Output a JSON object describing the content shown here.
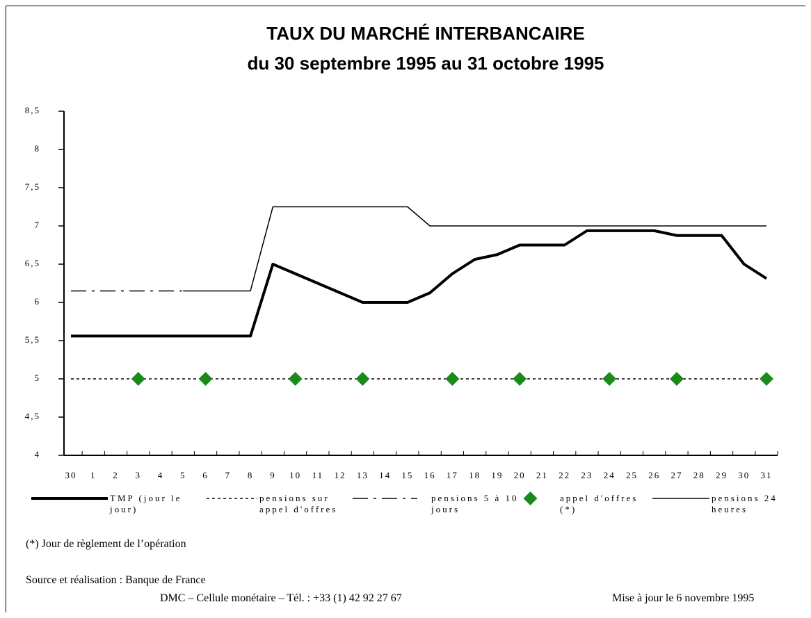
{
  "chart_data": {
    "type": "line",
    "title": "TAUX DU MARCHÉ INTERBANCAIRE",
    "subtitle": "du 30 septembre 1995 au 31 octobre 1995",
    "categories": [
      "30",
      "1",
      "2",
      "3",
      "4",
      "5",
      "6",
      "7",
      "8",
      "9",
      "10",
      "11",
      "12",
      "13",
      "14",
      "15",
      "16",
      "17",
      "18",
      "19",
      "20",
      "21",
      "22",
      "23",
      "24",
      "25",
      "26",
      "27",
      "28",
      "29",
      "30",
      "31"
    ],
    "ylim": [
      4,
      8.5
    ],
    "yticks": [
      {
        "value": 4,
        "label": "4"
      },
      {
        "value": 4.5,
        "label": "4,5"
      },
      {
        "value": 5,
        "label": "5"
      },
      {
        "value": 5.5,
        "label": "5,5"
      },
      {
        "value": 6,
        "label": "6"
      },
      {
        "value": 6.5,
        "label": "6,5"
      },
      {
        "value": 7,
        "label": "7"
      },
      {
        "value": 7.5,
        "label": "7,5"
      },
      {
        "value": 8,
        "label": "8"
      },
      {
        "value": 8.5,
        "label": "8,5"
      }
    ],
    "series": [
      {
        "name": "TMP (jour le jour)",
        "color": "#000000",
        "style": "solid",
        "width": 4,
        "values": [
          5.56,
          5.56,
          5.56,
          5.56,
          5.56,
          5.56,
          5.56,
          5.56,
          5.56,
          6.5,
          6.375,
          6.25,
          6.125,
          6.0,
          6.0,
          6.0,
          6.125,
          6.375,
          6.5625,
          6.625,
          6.75,
          6.75,
          6.75,
          6.9375,
          6.9375,
          6.9375,
          6.9375,
          6.875,
          6.875,
          6.875,
          6.5,
          6.3125
        ]
      },
      {
        "name": "pensions sur appel d'offres",
        "color": "#000000",
        "style": "dotted",
        "width": 1.5,
        "values": [
          5,
          5,
          5,
          5,
          5,
          5,
          5,
          5,
          5,
          5,
          5,
          5,
          5,
          5,
          5,
          5,
          5,
          5,
          5,
          5,
          5,
          5,
          5,
          5,
          5,
          5,
          5,
          5,
          5,
          5,
          5,
          5
        ]
      },
      {
        "name": "pensions 5 à 10 jours",
        "color": "#000000",
        "style": "dashdot",
        "width": 1.5,
        "values": [
          6.15,
          6.15,
          6.15,
          6.15,
          6.15,
          6.15,
          null,
          null,
          null,
          null,
          null,
          null,
          null,
          null,
          null,
          null,
          null,
          null,
          null,
          null,
          null,
          null,
          null,
          null,
          null,
          null,
          null,
          null,
          null,
          null,
          null,
          null
        ]
      },
      {
        "name": "appel d'offres (*)",
        "color": "#1a8a1a",
        "style": "marker",
        "values": [
          null,
          null,
          null,
          5,
          null,
          null,
          5,
          null,
          null,
          null,
          5,
          null,
          null,
          5,
          null,
          null,
          null,
          5,
          null,
          null,
          5,
          null,
          null,
          null,
          5,
          null,
          null,
          5,
          null,
          null,
          null,
          5
        ]
      },
      {
        "name": "pensions 24 heures",
        "color": "#000000",
        "style": "solid",
        "width": 1.5,
        "values": [
          null,
          null,
          null,
          null,
          null,
          6.15,
          6.15,
          6.15,
          6.15,
          7.25,
          7.25,
          7.25,
          7.25,
          7.25,
          7.25,
          7.25,
          7.0,
          7.0,
          7.0,
          7.0,
          7.0,
          7.0,
          7.0,
          7.0,
          7.0,
          7.0,
          7.0,
          7.0,
          7.0,
          7.0,
          7.0,
          7.0
        ]
      }
    ],
    "footnote": "(*) Jour de règlement de l’opération",
    "source": "Source et réalisation : Banque de France",
    "contact": "DMC – Cellule monétaire  – Tél. : +33 (1) 42 92 27 67",
    "updated": "Mise à jour le 6 novembre 1995"
  }
}
